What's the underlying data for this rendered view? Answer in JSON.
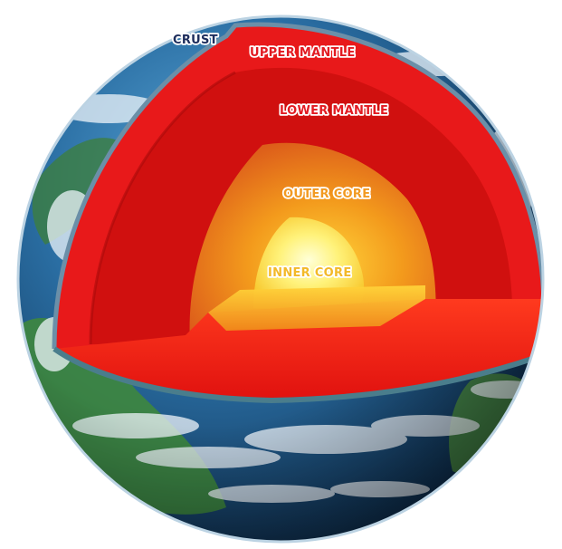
{
  "labels": {
    "crust": "CRUST",
    "upper_mantle": "UPPER MANTLE",
    "lower_mantle": "LOWER MANTLE",
    "outer_core": "OUTER CORE",
    "inner_core": "INNER CORE"
  },
  "colors": {
    "ocean": "#1f5f8f",
    "land": "#3f8a3a",
    "clouds": "#e8f1f8",
    "upper_mantle": "#e8191a",
    "lower_mantle": "#d0100f",
    "outer_core": "#f08a1a",
    "inner_core": "#fff27a",
    "label_red": "#e21b22",
    "label_orange": "#f29a21",
    "label_yellow": "#f3b928",
    "label_navy": "#1d2d5c"
  }
}
